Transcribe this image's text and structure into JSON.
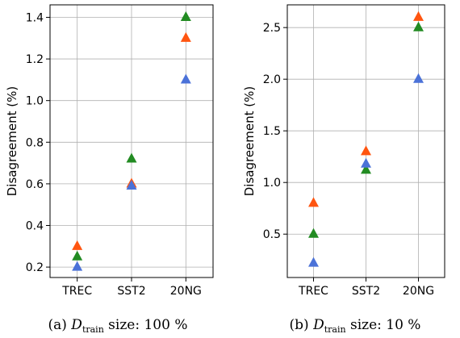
{
  "chart_data": [
    {
      "type": "scatter",
      "marker": "triangle",
      "categories": [
        "TREC",
        "SST2",
        "20NG"
      ],
      "ylabel": "Disagreement (%)",
      "yticks": [
        "0.2",
        "0.4",
        "0.6",
        "0.8",
        "1.0",
        "1.2",
        "1.4"
      ],
      "ylim": [
        0.15,
        1.46
      ],
      "grid": true,
      "series": [
        {
          "color": "#ff5510",
          "values": [
            0.3,
            0.6,
            1.3
          ]
        },
        {
          "color": "#228b22",
          "values": [
            0.25,
            0.72,
            1.4
          ]
        },
        {
          "color": "#4b72d8",
          "values": [
            0.2,
            0.59,
            1.1
          ]
        }
      ],
      "caption": {
        "prefix": "(a) ",
        "var": "D",
        "sub": "train",
        "suffix": " size: 100 %"
      }
    },
    {
      "type": "scatter",
      "marker": "triangle",
      "categories": [
        "TREC",
        "SST2",
        "20NG"
      ],
      "ylabel": "Disagreement (%)",
      "yticks": [
        "0.5",
        "1.0",
        "1.5",
        "2.0",
        "2.5"
      ],
      "ylim": [
        0.08,
        2.72
      ],
      "grid": true,
      "series": [
        {
          "color": "#ff5510",
          "values": [
            0.8,
            1.3,
            2.6
          ]
        },
        {
          "color": "#228b22",
          "values": [
            0.5,
            1.12,
            2.5
          ]
        },
        {
          "color": "#4b72d8",
          "values": [
            0.22,
            1.18,
            2.0
          ]
        }
      ],
      "caption": {
        "prefix": "(b) ",
        "var": "D",
        "sub": "train",
        "suffix": " size: 10 %"
      }
    }
  ]
}
